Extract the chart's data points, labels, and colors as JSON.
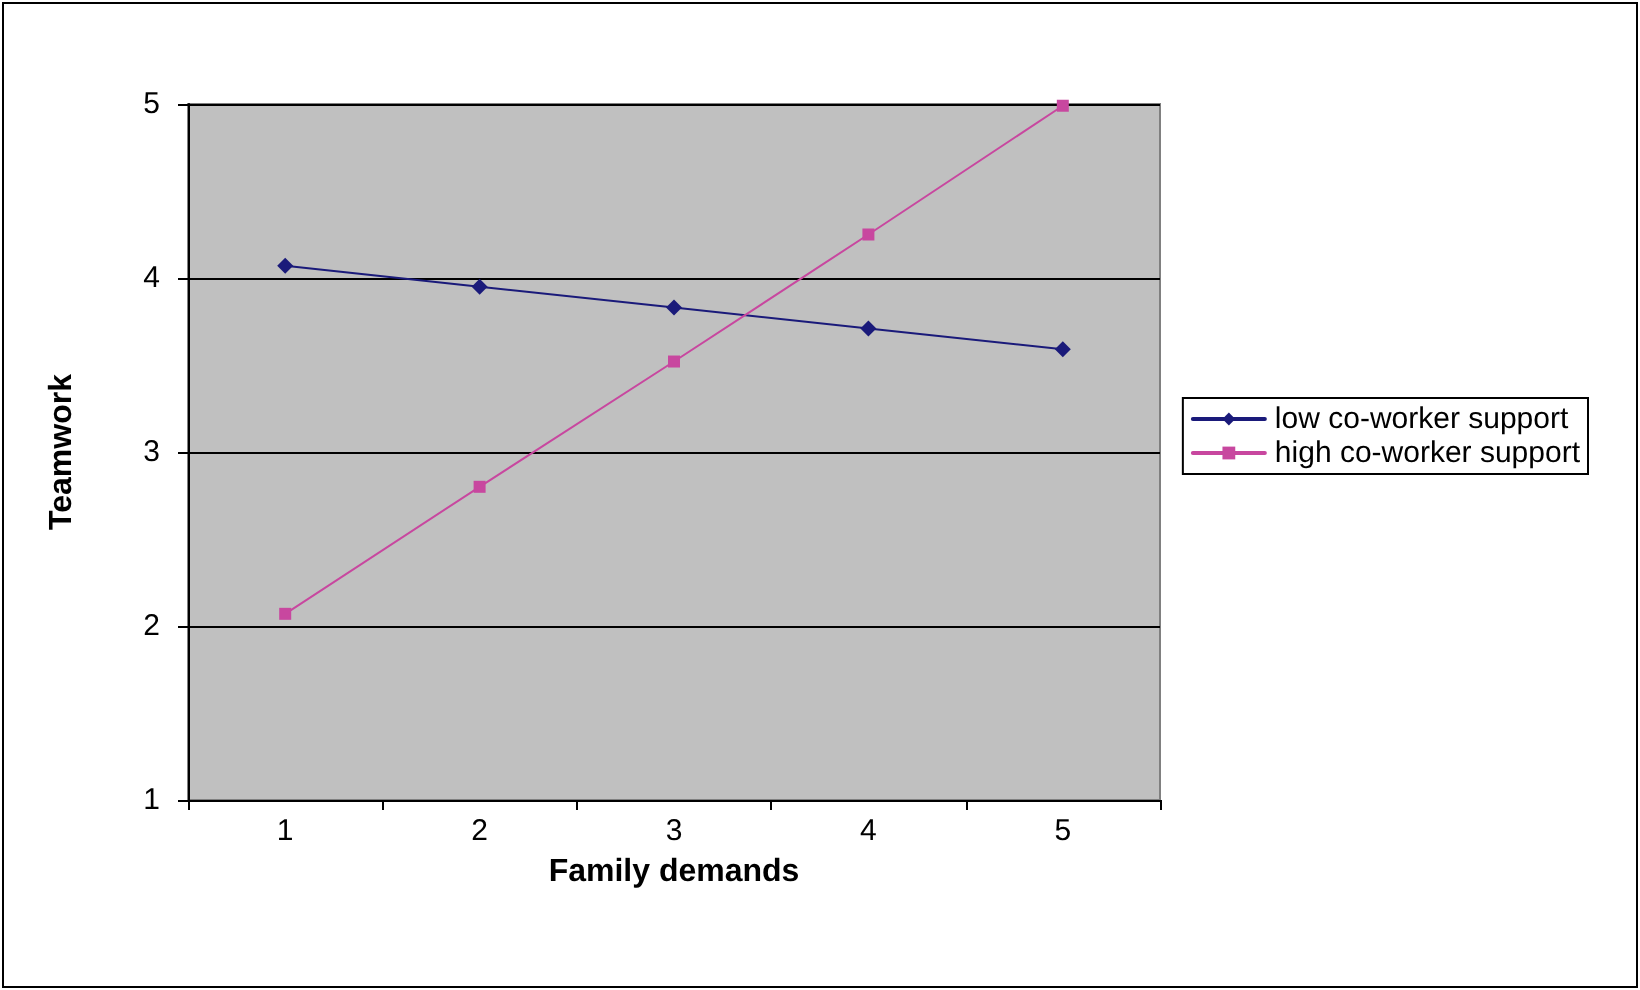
{
  "chart_data": {
    "type": "line",
    "xlabel": "Family demands",
    "ylabel": "Teamwork",
    "categories": [
      "1",
      "2",
      "3",
      "4",
      "5"
    ],
    "series": [
      {
        "name": "low co-worker support",
        "color": "#1a1a7a",
        "marker": "diamond",
        "values": [
          4.07,
          3.95,
          3.83,
          3.71,
          3.59
        ]
      },
      {
        "name": "high co-worker support",
        "color": "#c8479f",
        "marker": "square",
        "values": [
          2.07,
          2.8,
          3.52,
          4.25,
          4.99
        ]
      }
    ],
    "ylim": [
      1,
      5
    ],
    "yticks": [
      1,
      2,
      3,
      4,
      5
    ],
    "grid": "y",
    "legend": "right",
    "line_style": "solid"
  }
}
